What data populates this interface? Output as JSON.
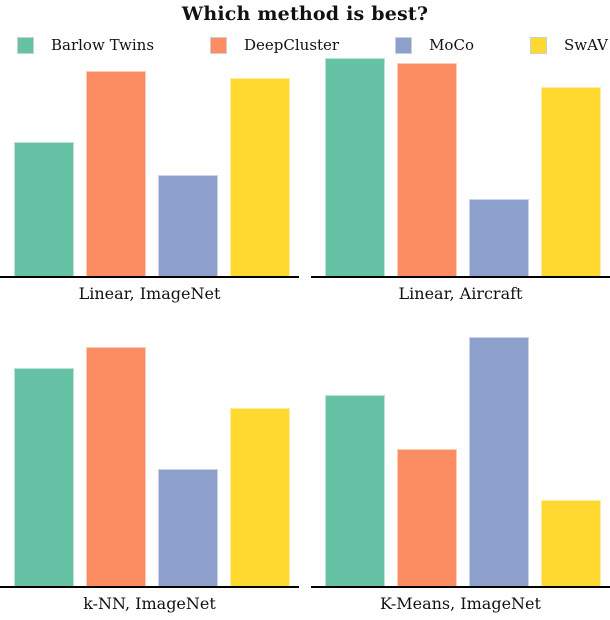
{
  "title": "Which method is best?",
  "legend": {
    "items": [
      {
        "label": "Barlow Twins",
        "color": "#66c2a5"
      },
      {
        "label": "DeepCluster",
        "color": "#fc8d62"
      },
      {
        "label": "MoCo",
        "color": "#8da0cb"
      },
      {
        "label": "SwAV",
        "color": "#ffd92f"
      }
    ]
  },
  "chart_data": [
    {
      "type": "bar",
      "xlabel": "Linear, ImageNet",
      "categories": [
        "Barlow Twins",
        "DeepCluster",
        "MoCo",
        "SwAV"
      ],
      "values": [
        0.61,
        0.93,
        0.46,
        0.9
      ],
      "ylim": [
        0,
        1
      ],
      "grid": false,
      "legend_position": "top",
      "colors": [
        "#66c2a5",
        "#fc8d62",
        "#8da0cb",
        "#ffd92f"
      ]
    },
    {
      "type": "bar",
      "xlabel": "Linear, Aircraft",
      "categories": [
        "Barlow Twins",
        "DeepCluster",
        "MoCo",
        "SwAV"
      ],
      "values": [
        0.99,
        0.97,
        0.35,
        0.86
      ],
      "ylim": [
        0,
        1
      ],
      "grid": false,
      "legend_position": "top",
      "colors": [
        "#66c2a5",
        "#fc8d62",
        "#8da0cb",
        "#ffd92f"
      ]
    },
    {
      "type": "bar",
      "xlabel": "k-NN, ImageNet",
      "categories": [
        "Barlow Twins",
        "DeepCluster",
        "MoCo",
        "SwAV"
      ],
      "values": [
        0.86,
        0.94,
        0.46,
        0.7
      ],
      "ylim": [
        0,
        1
      ],
      "grid": false,
      "legend_position": "top",
      "colors": [
        "#66c2a5",
        "#fc8d62",
        "#8da0cb",
        "#ffd92f"
      ]
    },
    {
      "type": "bar",
      "xlabel": "K-Means, ImageNet",
      "categories": [
        "Barlow Twins",
        "DeepCluster",
        "MoCo",
        "SwAV"
      ],
      "values": [
        0.75,
        0.54,
        0.98,
        0.34
      ],
      "ylim": [
        0,
        1
      ],
      "grid": false,
      "legend_position": "top",
      "colors": [
        "#66c2a5",
        "#fc8d62",
        "#8da0cb",
        "#ffd92f"
      ]
    }
  ]
}
